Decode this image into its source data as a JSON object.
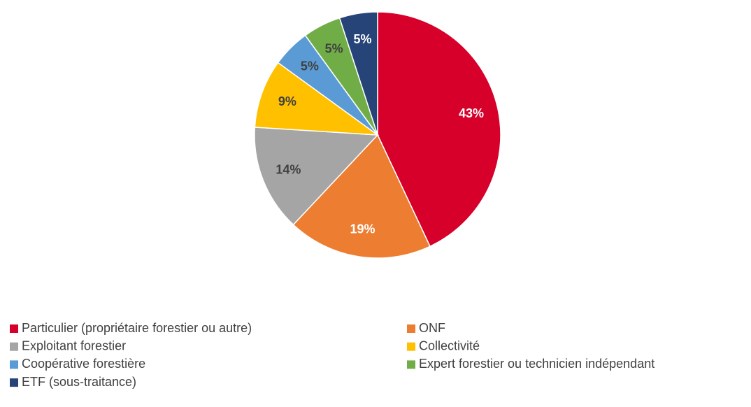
{
  "chart_data": {
    "type": "pie",
    "categories": [
      "Particulier (propriétaire forestier ou autre)",
      "ONF",
      "Exploitant forestier",
      "Collectivité",
      "Coopérative forestière",
      "Expert forestier ou technicien indépendant",
      "ETF (sous-traitance)"
    ],
    "values": [
      43,
      19,
      14,
      9,
      5,
      5,
      5
    ],
    "value_labels": [
      "43%",
      "19%",
      "14%",
      "9%",
      "5%",
      "5%",
      "5%"
    ],
    "colors": [
      "#d6002a",
      "#ed7d31",
      "#a5a5a5",
      "#ffc000",
      "#5b9bd5",
      "#70ad47",
      "#264478"
    ],
    "legend": "bottom"
  }
}
